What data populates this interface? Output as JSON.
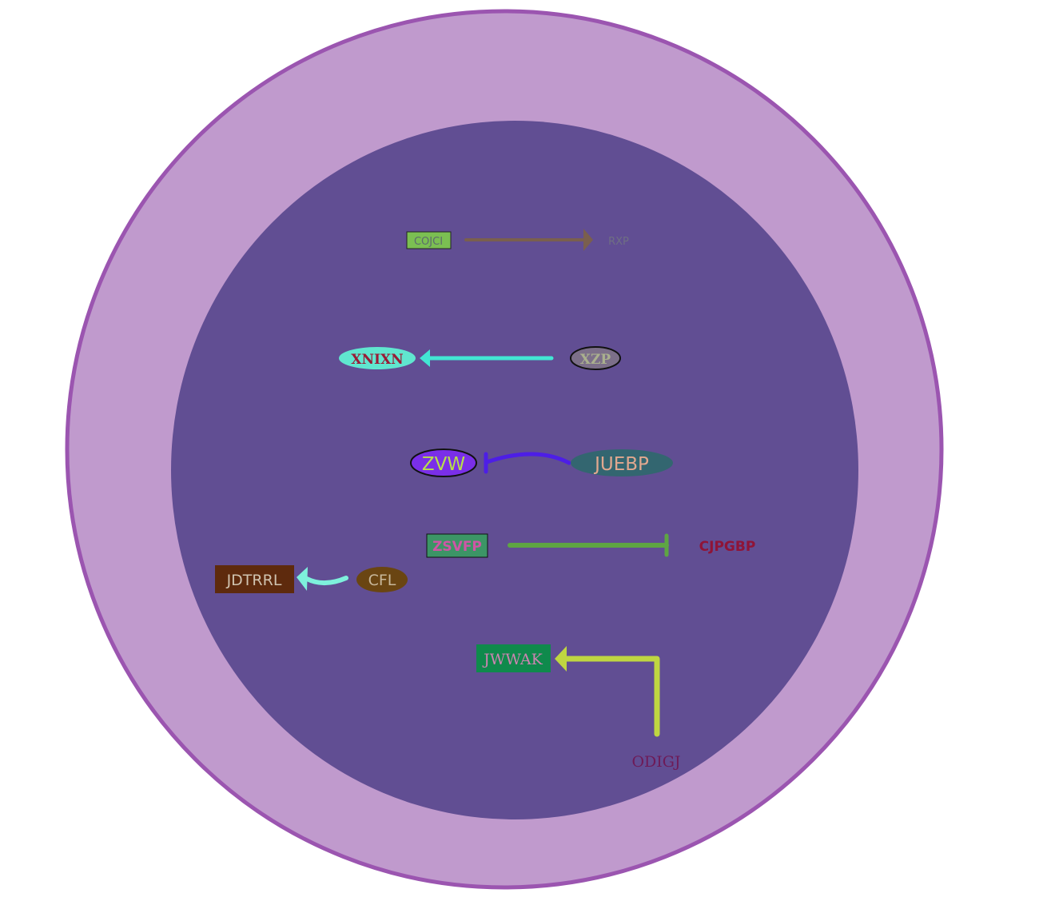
{
  "colors": {
    "background": "#ffffff",
    "outer_cell": "#c09acd",
    "outer_border": "#9b55b0",
    "nucleus": "#614e93"
  },
  "nodes": {
    "cojci": {
      "label": "COJCI",
      "shape": "rect",
      "fill": "#7bbf52",
      "stroke": "#222222",
      "text_color": "#5c6c6c"
    },
    "rxp": {
      "label": "RXP",
      "shape": "text",
      "text_color": "#6f6f83"
    },
    "xnixn": {
      "label": "XNIXN",
      "shape": "ellipse",
      "fill": "#60e6cf",
      "stroke": "none",
      "text_color": "#9a1b36"
    },
    "xzp": {
      "label": "XZP",
      "shape": "ellipse",
      "fill": "#7c6f89",
      "stroke": "#111111",
      "text_color": "#aab08e"
    },
    "zvw": {
      "label": "ZVW",
      "shape": "ellipse",
      "fill": "#7a2fe8",
      "stroke": "#111111",
      "text_color": "#b8df4a"
    },
    "juebp": {
      "label": "JUEBP",
      "shape": "ellipse",
      "fill": "#336670",
      "stroke": "none",
      "text_color": "#e1a88f"
    },
    "zsvfp": {
      "label": "ZSVFP",
      "shape": "rect",
      "fill": "#3c9566",
      "stroke": "#111111",
      "text_color": "#cf55a6"
    },
    "cjpgbp": {
      "label": "CJPGBP",
      "shape": "text",
      "text_color": "#8f1437"
    },
    "jdtrrl": {
      "label": "JDTRRL",
      "shape": "rect",
      "fill": "#5e2a0d",
      "stroke": "none",
      "text_color": "#d0c3b0"
    },
    "cfl": {
      "label": "CFL",
      "shape": "ellipse",
      "fill": "#6a4512",
      "stroke": "none",
      "text_color": "#c8b89b"
    },
    "jwwak": {
      "label": "JWWAK",
      "shape": "rect",
      "fill": "#0f8a4c",
      "stroke": "none",
      "text_color": "#cd84b2"
    },
    "odigj": {
      "label": "ODIGJ",
      "shape": "text",
      "text_color": "#6e1a57"
    }
  },
  "edges": [
    {
      "from": "cojci",
      "to": "rxp",
      "type": "activation",
      "color": "#7a5f4e"
    },
    {
      "from": "xzp",
      "to": "xnixn",
      "type": "activation",
      "color": "#42e6d3"
    },
    {
      "from": "juebp",
      "to": "zvw",
      "type": "inhibition",
      "color": "#4d1ee6"
    },
    {
      "from": "zsvfp",
      "to": "cjpgbp",
      "type": "inhibition",
      "color": "#5ea543"
    },
    {
      "from": "cfl",
      "to": "jdtrrl",
      "type": "activation",
      "color": "#7ef0dc"
    },
    {
      "from": "odigj",
      "to": "jwwak",
      "type": "activation",
      "color": "#bfd641"
    }
  ]
}
